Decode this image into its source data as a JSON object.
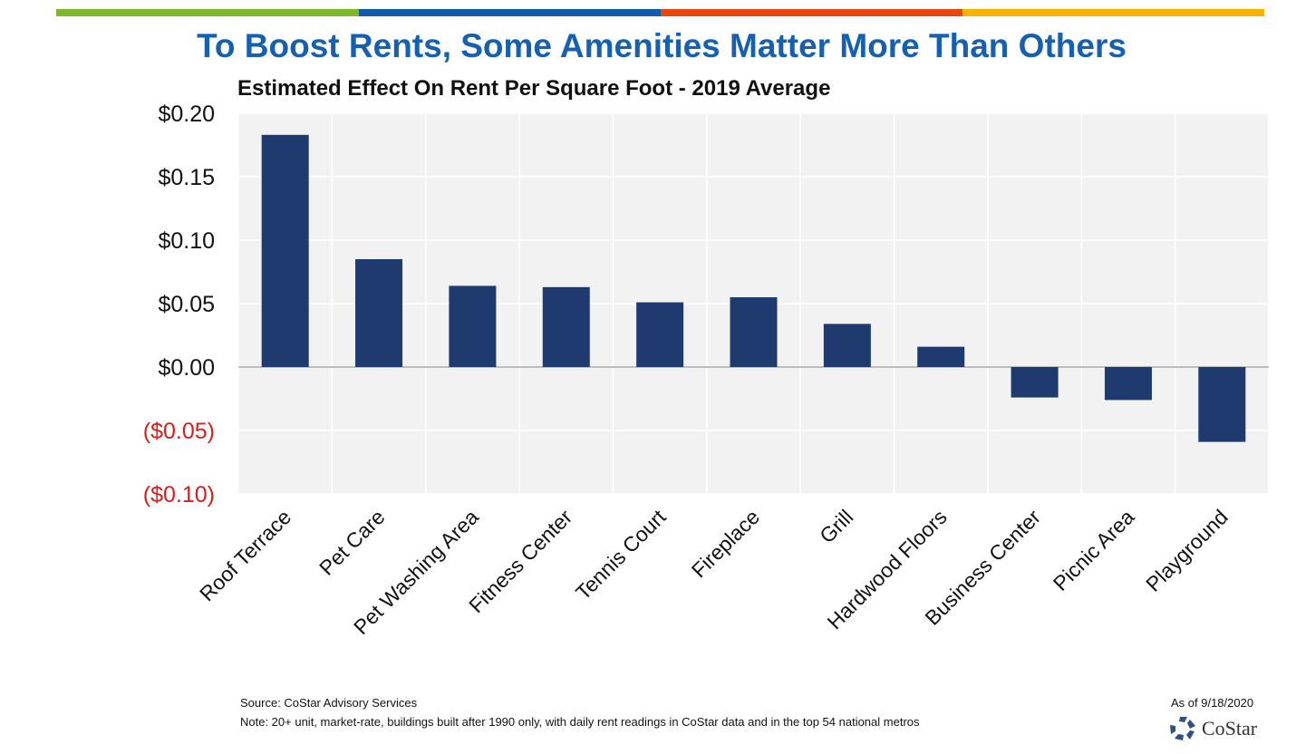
{
  "header": {
    "title": "To Boost Rents, Some Amenities Matter More Than Others",
    "stripe_colors": [
      "#7ab929",
      "#0f5cab",
      "#e8480f",
      "#f9b200"
    ]
  },
  "chart_data": {
    "type": "bar",
    "title": "To Boost Rents, Some Amenities Matter More Than Others",
    "subtitle": "Estimated Effect On Rent Per Square Foot - 2019 Average",
    "xlabel": "",
    "ylabel": "",
    "categories": [
      "Roof Terrace",
      "Pet Care",
      "Pet Washing Area",
      "Fitness Center",
      "Tennis Court",
      "Fireplace",
      "Grill",
      "Hardwood Floors",
      "Business Center",
      "Picnic Area",
      "Playground"
    ],
    "values": [
      0.183,
      0.085,
      0.064,
      0.063,
      0.051,
      0.055,
      0.034,
      0.016,
      -0.024,
      -0.026,
      -0.059
    ],
    "ylim": [
      -0.1,
      0.2
    ],
    "yticks": [
      0.2,
      0.15,
      0.1,
      0.05,
      0.0,
      -0.05,
      -0.1
    ],
    "ytick_labels": [
      "$0.20",
      "$0.15",
      "$0.10",
      "$0.05",
      "$0.00",
      "($0.05)",
      "($0.10)"
    ],
    "bar_color": "#1f3a6e",
    "negative_label_color": "#e01b1b",
    "grid": true,
    "legend": "none"
  },
  "footer": {
    "source": "Source: CoStar Advisory Services",
    "note": "Note: 20+ unit, market-rate, buildings built after 1990 only, with daily rent readings in CoStar data and in the top 54 national metros",
    "as_of": "As of 9/18/2020",
    "logo": "CoStar"
  }
}
